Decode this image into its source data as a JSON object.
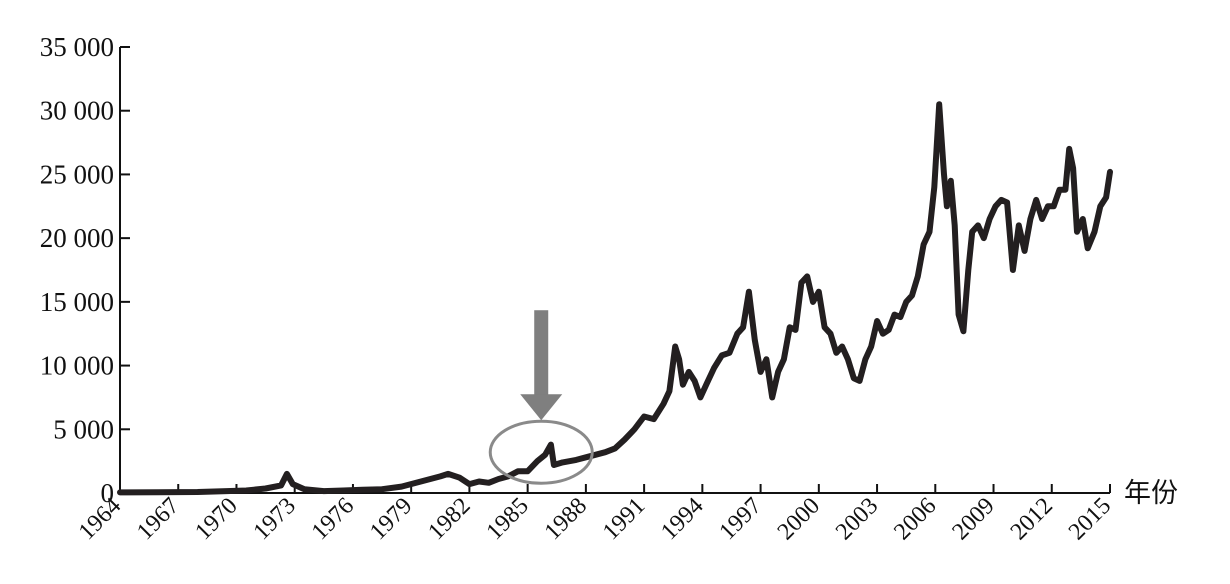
{
  "chart_data": {
    "type": "line",
    "title": "",
    "xlabel": "年份",
    "ylabel": "",
    "xlim": [
      1964,
      2015
    ],
    "ylim": [
      0,
      35000
    ],
    "grid": false,
    "legend": "none",
    "x_ticks": [
      "1964",
      "1967",
      "1970",
      "1973",
      "1976",
      "1979",
      "1982",
      "1985",
      "1988",
      "1991",
      "1994",
      "1997",
      "2000",
      "2003",
      "2006",
      "2009",
      "2012",
      "2015"
    ],
    "y_ticks": [
      "0",
      "5 000",
      "10 000",
      "15 000",
      "20 000",
      "25 000",
      "30 000",
      "35 000"
    ],
    "y_tick_values": [
      0,
      5000,
      10000,
      15000,
      20000,
      25000,
      30000,
      35000
    ],
    "line_color": "#231f20",
    "annotation_color": "#8a8a8a",
    "annotation": {
      "type": "circle-with-arrow",
      "x_center": 1985.7,
      "y_center": 3200
    },
    "series": [
      {
        "values": [
          [
            1964.0,
            50
          ],
          [
            1966.0,
            60
          ],
          [
            1968.0,
            80
          ],
          [
            1969.5,
            150
          ],
          [
            1970.5,
            200
          ],
          [
            1971.5,
            350
          ],
          [
            1972.3,
            600
          ],
          [
            1972.6,
            1500
          ],
          [
            1972.9,
            700
          ],
          [
            1973.5,
            300
          ],
          [
            1974.5,
            150
          ],
          [
            1975.5,
            200
          ],
          [
            1976.5,
            250
          ],
          [
            1977.5,
            300
          ],
          [
            1978.5,
            500
          ],
          [
            1979.5,
            900
          ],
          [
            1980.5,
            1300
          ],
          [
            1980.9,
            1500
          ],
          [
            1981.5,
            1200
          ],
          [
            1982.0,
            700
          ],
          [
            1982.5,
            900
          ],
          [
            1983.0,
            800
          ],
          [
            1983.5,
            1100
          ],
          [
            1984.0,
            1300
          ],
          [
            1984.5,
            1700
          ],
          [
            1985.0,
            1700
          ],
          [
            1985.5,
            2500
          ],
          [
            1985.9,
            3000
          ],
          [
            1986.2,
            3800
          ],
          [
            1986.35,
            2200
          ],
          [
            1986.8,
            2400
          ],
          [
            1987.5,
            2600
          ],
          [
            1988.0,
            2800
          ],
          [
            1989.0,
            3200
          ],
          [
            1989.5,
            3500
          ],
          [
            1990.0,
            4200
          ],
          [
            1990.5,
            5000
          ],
          [
            1991.0,
            6000
          ],
          [
            1991.5,
            5800
          ],
          [
            1992.0,
            7000
          ],
          [
            1992.3,
            8000
          ],
          [
            1992.6,
            11500
          ],
          [
            1992.8,
            10500
          ],
          [
            1993.0,
            8500
          ],
          [
            1993.3,
            9500
          ],
          [
            1993.6,
            8800
          ],
          [
            1993.9,
            7500
          ],
          [
            1994.2,
            8500
          ],
          [
            1994.6,
            9800
          ],
          [
            1995.0,
            10800
          ],
          [
            1995.4,
            11000
          ],
          [
            1995.8,
            12500
          ],
          [
            1996.1,
            13000
          ],
          [
            1996.4,
            15800
          ],
          [
            1996.7,
            12000
          ],
          [
            1997.0,
            9500
          ],
          [
            1997.3,
            10500
          ],
          [
            1997.6,
            7500
          ],
          [
            1997.9,
            9500
          ],
          [
            1998.2,
            10500
          ],
          [
            1998.5,
            13000
          ],
          [
            1998.8,
            12800
          ],
          [
            1999.1,
            16500
          ],
          [
            1999.4,
            17000
          ],
          [
            1999.7,
            15000
          ],
          [
            2000.0,
            15800
          ],
          [
            2000.3,
            13000
          ],
          [
            2000.6,
            12500
          ],
          [
            2000.9,
            11000
          ],
          [
            2001.2,
            11500
          ],
          [
            2001.5,
            10500
          ],
          [
            2001.8,
            9000
          ],
          [
            2002.1,
            8800
          ],
          [
            2002.4,
            10500
          ],
          [
            2002.7,
            11500
          ],
          [
            2003.0,
            13500
          ],
          [
            2003.3,
            12500
          ],
          [
            2003.6,
            12800
          ],
          [
            2003.9,
            14000
          ],
          [
            2004.2,
            13800
          ],
          [
            2004.5,
            15000
          ],
          [
            2004.8,
            15500
          ],
          [
            2005.1,
            17000
          ],
          [
            2005.4,
            19500
          ],
          [
            2005.7,
            20500
          ],
          [
            2005.95,
            24000
          ],
          [
            2006.2,
            30500
          ],
          [
            2006.45,
            25000
          ],
          [
            2006.6,
            22500
          ],
          [
            2006.8,
            24500
          ],
          [
            2007.0,
            21000
          ],
          [
            2007.2,
            14000
          ],
          [
            2007.45,
            12700
          ],
          [
            2007.7,
            17500
          ],
          [
            2007.9,
            20500
          ],
          [
            2008.2,
            21000
          ],
          [
            2008.5,
            20000
          ],
          [
            2008.8,
            21500
          ],
          [
            2009.1,
            22500
          ],
          [
            2009.4,
            23000
          ],
          [
            2009.7,
            22800
          ],
          [
            2010.0,
            17500
          ],
          [
            2010.3,
            21000
          ],
          [
            2010.6,
            19000
          ],
          [
            2010.9,
            21500
          ],
          [
            2011.2,
            23000
          ],
          [
            2011.5,
            21500
          ],
          [
            2011.8,
            22500
          ],
          [
            2012.1,
            22500
          ],
          [
            2012.4,
            23800
          ],
          [
            2012.7,
            23800
          ],
          [
            2012.9,
            27000
          ],
          [
            2013.1,
            25500
          ],
          [
            2013.3,
            20500
          ],
          [
            2013.6,
            21500
          ],
          [
            2013.85,
            19200
          ],
          [
            2014.2,
            20500
          ],
          [
            2014.5,
            22500
          ],
          [
            2014.8,
            23200
          ],
          [
            2015.0,
            25200
          ]
        ]
      }
    ]
  }
}
